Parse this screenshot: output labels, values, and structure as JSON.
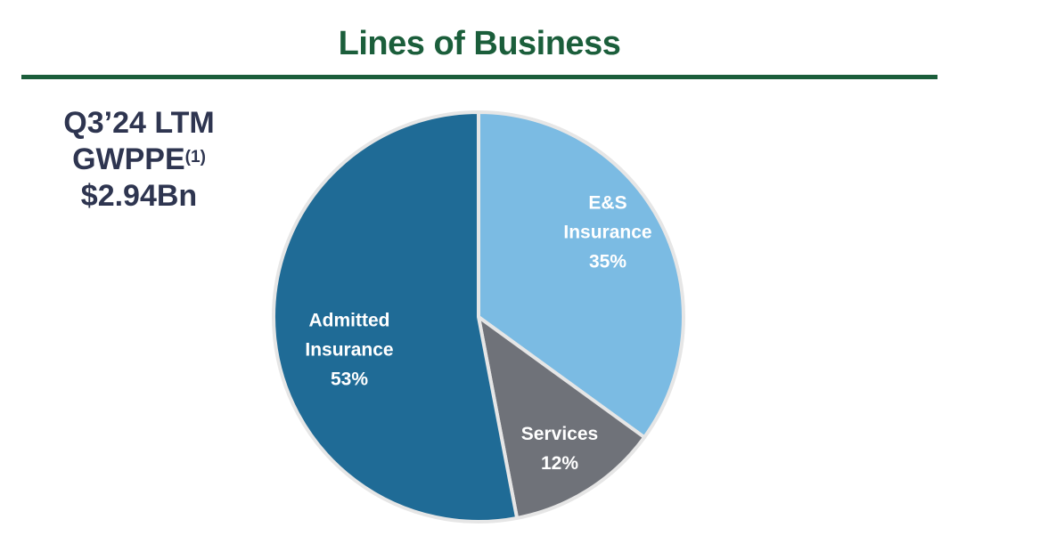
{
  "title": "Lines of Business",
  "kpi": {
    "line1": "Q3’24 LTM",
    "line2_main": "GWPPE",
    "line2_sup": "(1)",
    "line3": "$2.94Bn"
  },
  "colors": {
    "title_green": "#1b5e3b",
    "kpi_text": "#2e3550",
    "admitted": "#1f6b96",
    "es": "#7bbbe3",
    "services": "#6f7279"
  },
  "chart_data": {
    "type": "pie",
    "title": "Lines of Business",
    "slices": [
      {
        "label_lines": [
          "E&S",
          "Insurance",
          "35%"
        ],
        "value": 35,
        "color": "#7bbbe3"
      },
      {
        "label_lines": [
          "Services",
          "12%"
        ],
        "value": 12,
        "color": "#6f7279"
      },
      {
        "label_lines": [
          "Admitted",
          "Insurance",
          "53%"
        ],
        "value": 53,
        "color": "#1f6b96"
      }
    ],
    "start_angle_deg": 0,
    "direction": "clockwise"
  }
}
